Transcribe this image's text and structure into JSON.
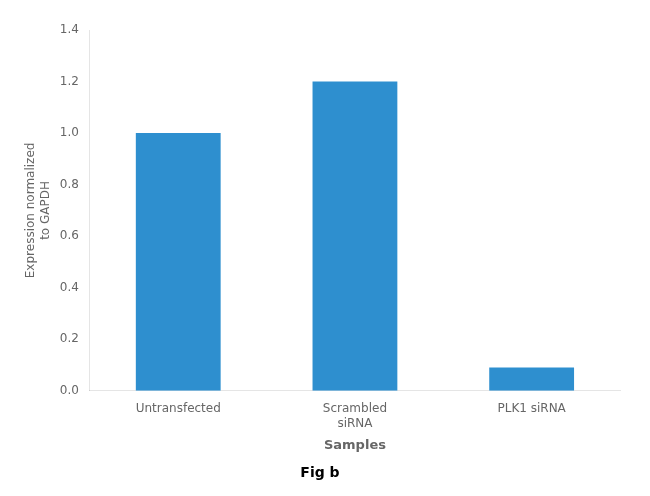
{
  "chart_data": {
    "type": "bar",
    "categories": [
      "Untransfected",
      "Scrambled\nsiRNA",
      "PLK1 siRNA"
    ],
    "values": [
      1.0,
      1.2,
      0.09
    ],
    "color": "#2e8fcf",
    "ylim": [
      0,
      1.4
    ],
    "yticks": [
      {
        "value": 0,
        "label": "0.0"
      },
      0.2,
      0.4,
      0.6,
      0.8,
      {
        "value": 1.0,
        "label": "1.0"
      },
      1.2,
      1.4
    ],
    "xlabel": "Samples",
    "ylabel": "Expression normalized\nto GAPDH",
    "grid": false,
    "annotations": [
      "Fig b"
    ]
  }
}
